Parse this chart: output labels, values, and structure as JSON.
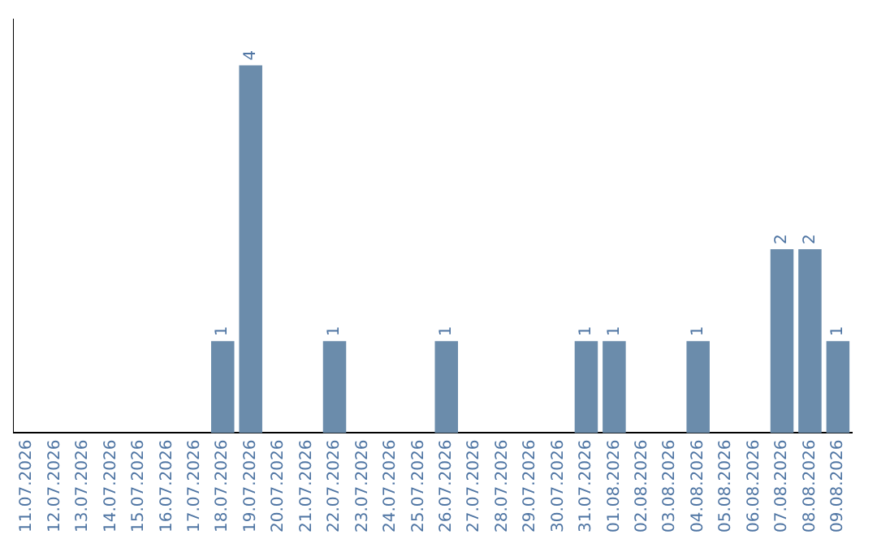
{
  "chart_data": {
    "type": "bar",
    "categories": [
      "11.07.2026",
      "12.07.2026",
      "13.07.2026",
      "14.07.2026",
      "15.07.2026",
      "16.07.2026",
      "17.07.2026",
      "18.07.2026",
      "19.07.2026",
      "20.07.2026",
      "21.07.2026",
      "22.07.2026",
      "23.07.2026",
      "24.07.2026",
      "25.07.2026",
      "26.07.2026",
      "27.07.2026",
      "28.07.2026",
      "29.07.2026",
      "30.07.2026",
      "31.07.2026",
      "01.08.2026",
      "02.08.2026",
      "03.08.2026",
      "04.08.2026",
      "05.08.2026",
      "06.08.2026",
      "07.08.2026",
      "08.08.2026",
      "09.08.2026"
    ],
    "values": [
      0,
      0,
      0,
      0,
      0,
      0,
      0,
      1,
      4,
      0,
      0,
      1,
      0,
      0,
      0,
      1,
      0,
      0,
      0,
      0,
      1,
      1,
      0,
      0,
      1,
      0,
      0,
      2,
      2,
      1
    ],
    "value_labels": [
      null,
      null,
      null,
      null,
      null,
      null,
      null,
      "1",
      "4",
      null,
      null,
      "1",
      null,
      null,
      null,
      "1",
      null,
      null,
      null,
      null,
      "1",
      "1",
      null,
      null,
      "1",
      null,
      null,
      "2",
      "2",
      "1"
    ],
    "color": "#6b8cab",
    "grid": false,
    "legend": false,
    "tick_labels": "x"
  }
}
